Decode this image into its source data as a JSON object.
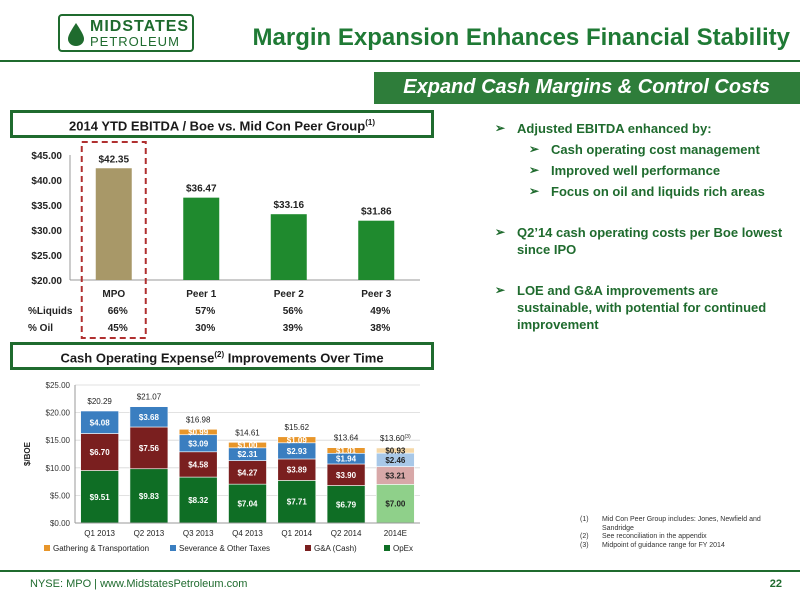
{
  "logo": {
    "top": "MIDSTATES",
    "bottom": "PETROLEUM"
  },
  "title": "Margin Expansion Enhances Financial Stability",
  "banner": "Expand Cash Margins & Control Costs",
  "box1": {
    "title": "2014 YTD EBITDA / Boe vs. Mid Con Peer Group",
    "sup": "(1)"
  },
  "box2": {
    "title_pre": "Cash Operating Expense",
    "sup": "(2)",
    "title_post": " Improvements Over Time"
  },
  "row_labels": [
    "%Liquids",
    "% Oil"
  ],
  "chart_data": [
    {
      "type": "bar",
      "categories": [
        "MPO",
        "Peer 1",
        "Peer 2",
        "Peer 3"
      ],
      "values": [
        42.35,
        36.47,
        33.16,
        31.86
      ],
      "data_labels": [
        "$42.35",
        "$36.47",
        "$33.16",
        "$31.86"
      ],
      "ylim": [
        20,
        45
      ],
      "y_ticks": [
        "$20.00",
        "$25.00",
        "$30.00",
        "$35.00",
        "$40.00",
        "$45.00"
      ],
      "liquids_pct": [
        "66%",
        "57%",
        "56%",
        "49%"
      ],
      "oil_pct": [
        "45%",
        "30%",
        "39%",
        "38%"
      ],
      "colors": {
        "mpo": "#a89868",
        "peer": "#1f8a2e",
        "highlight_border": "#b03030"
      }
    },
    {
      "type": "bar",
      "stacked": true,
      "categories": [
        "Q1 2013",
        "Q2 2013",
        "Q3 2013",
        "Q4 2013",
        "Q1 2014",
        "Q2 2014",
        "2014E"
      ],
      "ylabel": "$/BOE",
      "ylim": [
        0,
        25
      ],
      "y_ticks": [
        "$0.00",
        "$5.00",
        "$10.00",
        "$15.00",
        "$20.00",
        "$25.00"
      ],
      "series": [
        {
          "name": "OpEx",
          "color": "#0f6e25",
          "values": [
            9.51,
            9.83,
            8.32,
            7.04,
            7.71,
            6.79,
            7.0
          ],
          "labels": [
            "$9.51",
            "$9.83",
            "$8.32",
            "$7.04",
            "$7.71",
            "$6.79",
            "$7.00"
          ]
        },
        {
          "name": "G&A (Cash)",
          "color": "#7a1f1f",
          "values": [
            6.7,
            7.56,
            4.58,
            4.27,
            3.89,
            3.9,
            3.21
          ],
          "labels": [
            "$6.70",
            "$7.56",
            "$4.58",
            "$4.27",
            "$3.89",
            "$3.90",
            "$3.21"
          ]
        },
        {
          "name": "Severance & Other Taxes",
          "color": "#3a7ec0",
          "values": [
            4.08,
            3.68,
            3.09,
            2.31,
            2.93,
            1.94,
            2.46
          ],
          "labels": [
            "$4.08",
            "$3.68",
            "$3.09",
            "$2.31",
            "$2.93",
            "$1.94",
            "$2.46"
          ]
        },
        {
          "name": "Gathering & Transportation",
          "color": "#e8962a",
          "values": [
            0,
            0,
            0.99,
            1.0,
            1.09,
            1.01,
            0.93
          ],
          "labels": [
            "",
            "",
            "$0.99",
            "$1.00",
            "$1.09",
            "$1.01",
            "$0.93"
          ]
        }
      ],
      "totals": [
        "$20.29",
        "$21.07",
        "$16.98",
        "$14.61",
        "$15.62",
        "$13.64",
        "$13.60"
      ],
      "total_note": "(3)",
      "legend_order": [
        "Gathering & Transportation",
        "Severance & Other Taxes",
        "G&A (Cash)",
        "OpEx"
      ],
      "estimate_colors": {
        "OpEx": "#8fd08a",
        "G&A (Cash)": "#d8a8a8",
        "Severance & Other Taxes": "#a8c8e8",
        "Gathering & Transportation": "#f5d8a8"
      }
    }
  ],
  "bullets": [
    {
      "level": 1,
      "text": "Adjusted EBITDA enhanced by:"
    },
    {
      "level": 2,
      "text": "Cash operating cost management"
    },
    {
      "level": 2,
      "text": "Improved well performance"
    },
    {
      "level": 2,
      "text": "Focus on oil and liquids rich areas"
    },
    {
      "level": 1,
      "text": "Q2’14 cash operating costs per Boe lowest since IPO",
      "gap": true
    },
    {
      "level": 1,
      "text": "LOE and G&A improvements are sustainable, with potential for continued improvement",
      "gap": true
    }
  ],
  "footnotes": [
    {
      "num": "(1)",
      "text": "Mid Con Peer Group includes: Jones, Newfield and Sandridge"
    },
    {
      "num": "(2)",
      "text": "See reconciliation in the appendix"
    },
    {
      "num": "(3)",
      "text": "Midpoint of guidance range for FY 2014"
    }
  ],
  "footer": "NYSE: MPO | www.MidstatesPetroleum.com",
  "page": "22"
}
